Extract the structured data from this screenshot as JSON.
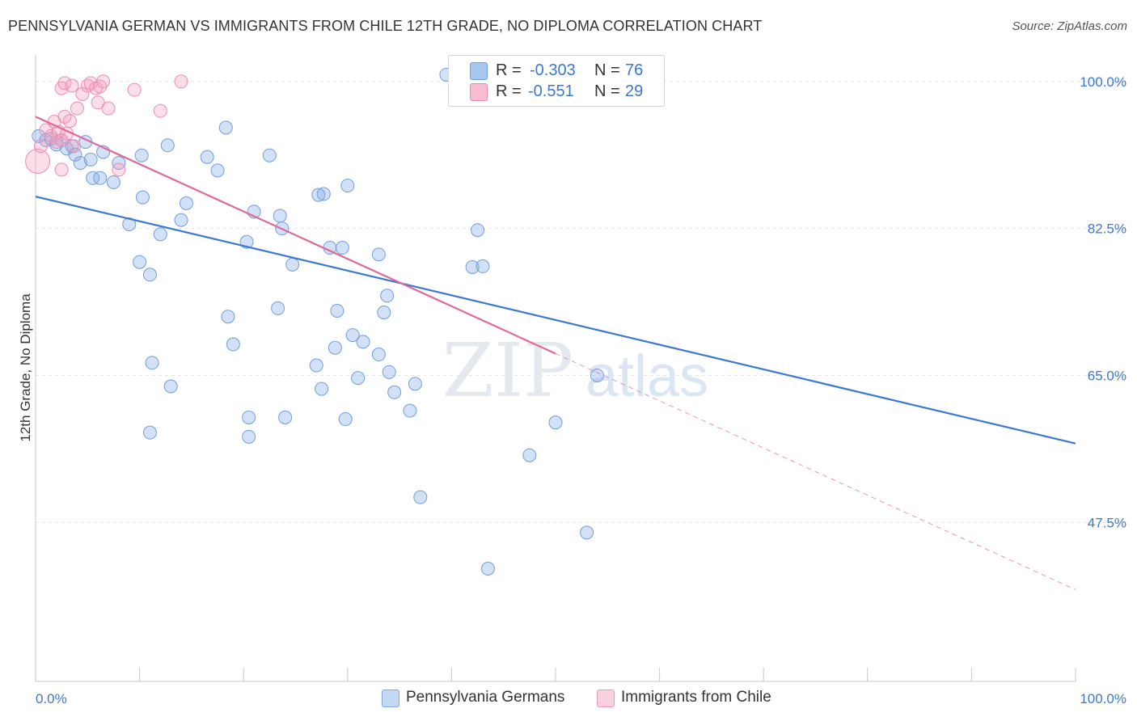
{
  "title": "PENNSYLVANIA GERMAN VS IMMIGRANTS FROM CHILE 12TH GRADE, NO DIPLOMA CORRELATION CHART",
  "source": "Source: ZipAtlas.com",
  "watermark": {
    "zip": "ZIP",
    "atlas": "atlas"
  },
  "stats": [
    {
      "r_label": "R =",
      "r_value": "-0.303",
      "n_label": "N =",
      "n_value": "76",
      "color": "#a9c6ee",
      "border": "#6f9fe0"
    },
    {
      "r_label": "R =",
      "r_value": "-0.551",
      "n_label": "N =",
      "n_value": "29",
      "color": "#f7bcd0",
      "border": "#ea8aad"
    }
  ],
  "legend": [
    {
      "label": "Pennsylvania Germans",
      "color": "#c2d8f5",
      "border": "#7fa8e0"
    },
    {
      "label": "Immigrants from Chile",
      "color": "#f9d0de",
      "border": "#eb9ab8"
    }
  ],
  "colors": {
    "blue_fill": "rgba(130,170,230,0.35)",
    "blue_stroke": "#6f9ee0",
    "blue_line": "#3a78d2",
    "pink_fill": "rgba(245,160,190,0.35)",
    "pink_stroke": "#ea8db0",
    "pink_line": "#e0689a",
    "grid": "#e6e6e6",
    "axis_text": "#3b78d0"
  },
  "chart_data": {
    "type": "scatter",
    "title": "PENNSYLVANIA GERMAN VS IMMIGRANTS FROM CHILE 12TH GRADE, NO DIPLOMA CORRELATION CHART",
    "xlabel": "",
    "ylabel": "12th Grade, No Diploma",
    "xlim": [
      0,
      100
    ],
    "ylim": [
      30.5,
      102
    ],
    "x_tick_labels": [
      {
        "value": 0,
        "label": "0.0%"
      },
      {
        "value": 100,
        "label": "100.0%"
      }
    ],
    "y_tick_labels": [
      {
        "value": 100.0,
        "label": "100.0%"
      },
      {
        "value": 82.5,
        "label": "82.5%"
      },
      {
        "value": 65.0,
        "label": "65.0%"
      },
      {
        "value": 47.5,
        "label": "47.5%"
      }
    ],
    "grid": true,
    "series": [
      {
        "name": "Pennsylvania Germans",
        "r": -0.303,
        "n": 76,
        "trend": {
          "x0": 0,
          "y0": 86.3,
          "x1": 100,
          "y1": 56.9
        },
        "points": [
          [
            0.3,
            93.5
          ],
          [
            1.0,
            93.0
          ],
          [
            1.5,
            93.2
          ],
          [
            2.0,
            92.5
          ],
          [
            2.5,
            93.0
          ],
          [
            3.0,
            92.0
          ],
          [
            3.5,
            92.3
          ],
          [
            3.8,
            91.3
          ],
          [
            4.3,
            90.3
          ],
          [
            4.8,
            92.8
          ],
          [
            5.5,
            88.5
          ],
          [
            5.3,
            90.7
          ],
          [
            6.2,
            88.5
          ],
          [
            6.5,
            91.6
          ],
          [
            7.5,
            88.0
          ],
          [
            8.0,
            90.3
          ],
          [
            9.0,
            83.0
          ],
          [
            10.0,
            78.5
          ],
          [
            10.2,
            91.2
          ],
          [
            10.3,
            86.2
          ],
          [
            11.0,
            77.0
          ],
          [
            12.0,
            81.8
          ],
          [
            11.0,
            58.2
          ],
          [
            11.2,
            66.5
          ],
          [
            12.7,
            92.4
          ],
          [
            13.0,
            63.7
          ],
          [
            14.0,
            83.5
          ],
          [
            16.5,
            91.0
          ],
          [
            17.5,
            89.4
          ],
          [
            18.3,
            94.5
          ],
          [
            14.5,
            85.5
          ],
          [
            21.0,
            84.5
          ],
          [
            20.3,
            80.9
          ],
          [
            20.5,
            57.7
          ],
          [
            20.5,
            60.0
          ],
          [
            19.0,
            68.7
          ],
          [
            22.5,
            91.2
          ],
          [
            23.5,
            84.0
          ],
          [
            23.7,
            82.5
          ],
          [
            24.7,
            78.2
          ],
          [
            18.5,
            72.0
          ],
          [
            27.2,
            86.5
          ],
          [
            27.7,
            86.6
          ],
          [
            28.3,
            80.2
          ],
          [
            27.5,
            63.4
          ],
          [
            27.0,
            66.2
          ],
          [
            24.0,
            60.0
          ],
          [
            23.3,
            73.0
          ],
          [
            28.8,
            68.3
          ],
          [
            29.0,
            72.7
          ],
          [
            29.8,
            59.8
          ],
          [
            30.5,
            69.8
          ],
          [
            31.5,
            69.0
          ],
          [
            31.0,
            64.7
          ],
          [
            29.5,
            80.2
          ],
          [
            30.0,
            87.6
          ],
          [
            33.0,
            79.4
          ],
          [
            33.5,
            72.5
          ],
          [
            33.8,
            74.5
          ],
          [
            34.0,
            65.4
          ],
          [
            36.0,
            60.8
          ],
          [
            36.5,
            64.0
          ],
          [
            33.0,
            67.5
          ],
          [
            34.5,
            63.0
          ],
          [
            37.0,
            50.5
          ],
          [
            43.5,
            98.0
          ],
          [
            39.5,
            100.8
          ],
          [
            42.0,
            77.9
          ],
          [
            42.5,
            82.3
          ],
          [
            43.0,
            78.0
          ],
          [
            48.0,
            100.8
          ],
          [
            43.5,
            42.0
          ],
          [
            53.0,
            46.3
          ],
          [
            50.0,
            59.4
          ],
          [
            47.5,
            55.5
          ],
          [
            54.0,
            65.0
          ]
        ]
      },
      {
        "name": "Immigrants from Chile",
        "r": -0.551,
        "n": 29,
        "trend": {
          "x0": 0,
          "y0": 95.8,
          "x1": 50,
          "y1": 67.6,
          "dash_x1": 100,
          "dash_y1": 39.5
        },
        "points": [
          [
            0.2,
            90.5
          ],
          [
            0.5,
            92.3
          ],
          [
            1.0,
            94.2
          ],
          [
            1.5,
            93.5
          ],
          [
            1.8,
            95.2
          ],
          [
            2.0,
            92.8
          ],
          [
            2.2,
            94.0
          ],
          [
            2.5,
            93.0
          ],
          [
            2.8,
            95.8
          ],
          [
            3.0,
            93.8
          ],
          [
            3.3,
            95.3
          ],
          [
            3.7,
            92.3
          ],
          [
            2.5,
            89.5
          ],
          [
            2.5,
            99.2
          ],
          [
            2.8,
            99.8
          ],
          [
            3.5,
            99.5
          ],
          [
            4.0,
            96.8
          ],
          [
            4.5,
            98.5
          ],
          [
            5.0,
            99.5
          ],
          [
            5.3,
            99.8
          ],
          [
            5.8,
            99.2
          ],
          [
            6.0,
            97.5
          ],
          [
            6.2,
            99.4
          ],
          [
            6.5,
            100.0
          ],
          [
            7.0,
            96.8
          ],
          [
            8.0,
            89.5
          ],
          [
            9.5,
            99.0
          ],
          [
            12.0,
            96.5
          ],
          [
            14.0,
            100.0
          ]
        ]
      }
    ]
  }
}
